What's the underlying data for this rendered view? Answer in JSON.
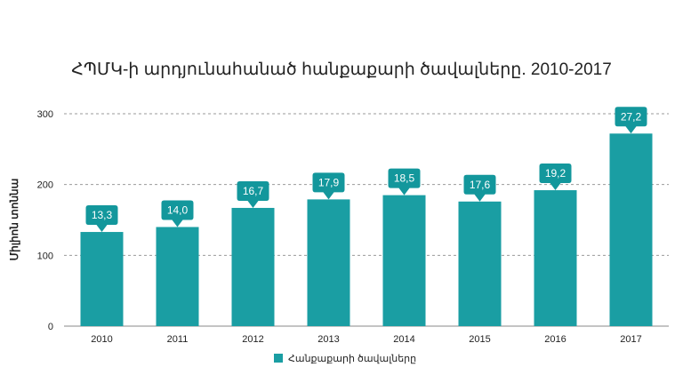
{
  "chart_data": {
    "type": "bar",
    "title": "ՀՊՄԿ-ի արդյունահանած հանքաքարի ծավալները. 2010-2017",
    "xlabel": "",
    "ylabel": "Միլիոն տոննա",
    "categories": [
      "2010",
      "2011",
      "2012",
      "2013",
      "2014",
      "2015",
      "2016",
      "2017"
    ],
    "series": [
      {
        "name": "Հանքաքարի ծավալները",
        "values": [
          13.3,
          14.0,
          16.7,
          17.9,
          18.5,
          17.6,
          19.2,
          27.2
        ],
        "labels": [
          "13,3",
          "14,0",
          "16,7",
          "17,9",
          "18,5",
          "17,6",
          "19,2",
          "27,2"
        ]
      }
    ],
    "ylim": [
      0,
      300
    ],
    "yticks": [
      0,
      100,
      200,
      300
    ],
    "value_scale": 10,
    "grid": true,
    "legend_position": "bottom",
    "bar_color": "#1a9ea3",
    "label_bg_color": "#13979c"
  }
}
